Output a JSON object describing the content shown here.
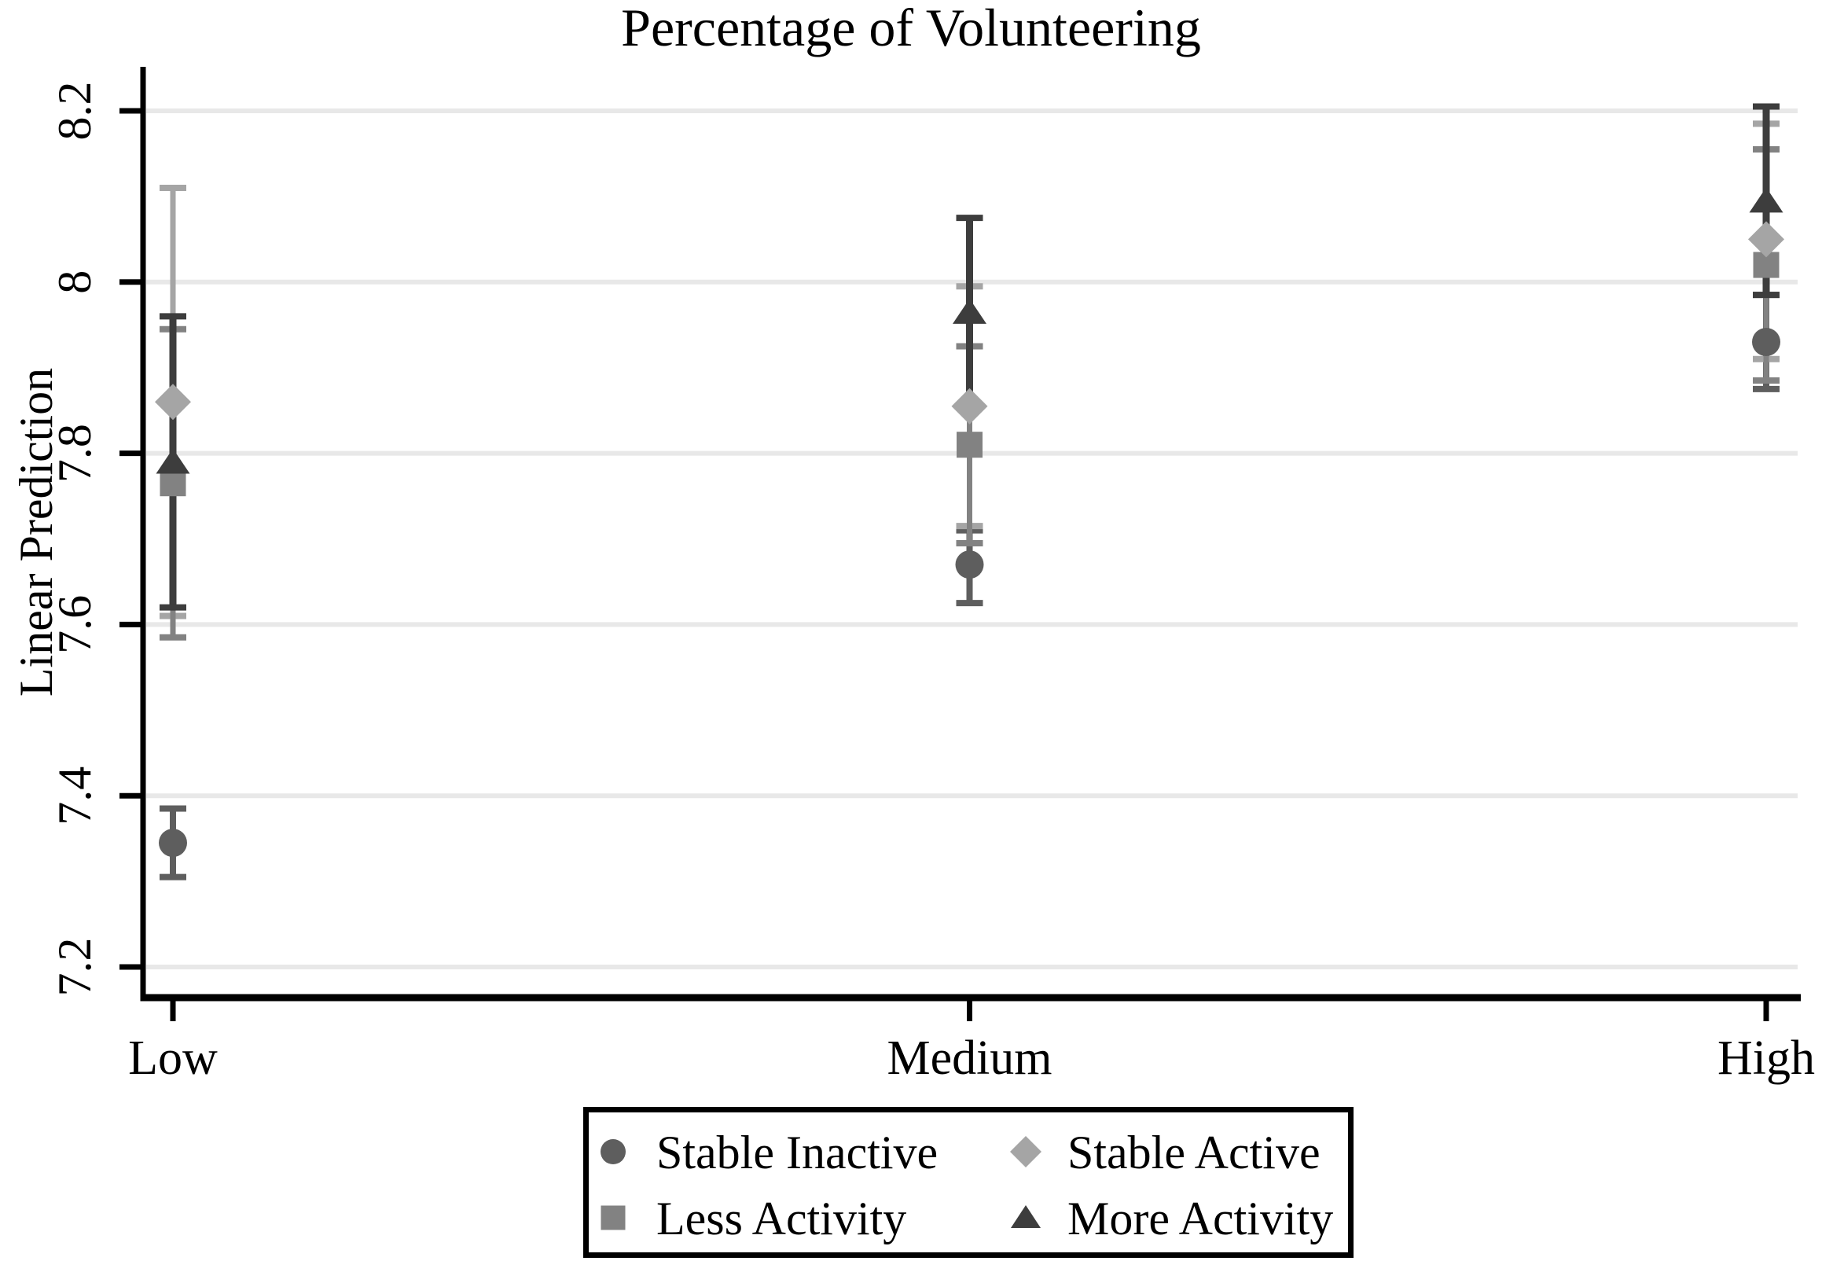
{
  "title": "Percentage of Volunteering",
  "chart_data": {
    "type": "scatter",
    "subtype": "point-estimates-with-95ci",
    "title": "Percentage of Volunteering",
    "xlabel": "",
    "ylabel": "Linear Prediction",
    "categories": [
      "Low",
      "Medium",
      "High"
    ],
    "ytick_values": [
      8.2,
      8.0,
      7.8,
      7.6,
      7.4,
      7.2
    ],
    "ytick_labels": [
      "8.2",
      "8",
      "7.8",
      "7.6",
      "7.4",
      "7.2"
    ],
    "ylim": [
      7.163,
      8.252
    ],
    "grid": true,
    "gridline_color": "#e8e8e8",
    "axis_color": "#000000",
    "background_color": "#ffffff",
    "legend": {
      "position": "bottom",
      "border": true,
      "rows": 2,
      "cols": 2,
      "order": [
        "Stable Inactive",
        "Stable Active",
        "Less Activity",
        "More Activity"
      ]
    },
    "series": [
      {
        "name": "Stable Inactive",
        "marker": "circle",
        "color": "#5e5e5e",
        "values": [
          7.345,
          7.67,
          7.93
        ],
        "ci_low": [
          7.305,
          7.625,
          7.875
        ],
        "ci_high": [
          7.385,
          7.71,
          7.985
        ]
      },
      {
        "name": "Stable Active",
        "marker": "diamond",
        "color": "#a5a5a5",
        "values": [
          7.86,
          7.855,
          8.05
        ],
        "ci_low": [
          7.61,
          7.715,
          7.91
        ],
        "ci_high": [
          8.11,
          7.995,
          8.185
        ]
      },
      {
        "name": "Less Activity",
        "marker": "square",
        "color": "#828282",
        "values": [
          7.765,
          7.81,
          8.02
        ],
        "ci_low": [
          7.585,
          7.695,
          7.885
        ],
        "ci_high": [
          7.945,
          7.925,
          8.155
        ]
      },
      {
        "name": "More Activity",
        "marker": "triangle",
        "color": "#3d3d3d",
        "values": [
          7.79,
          7.965,
          8.095
        ],
        "ci_low": [
          7.62,
          7.855,
          7.985
        ],
        "ci_high": [
          7.96,
          8.075,
          8.205
        ]
      }
    ]
  }
}
